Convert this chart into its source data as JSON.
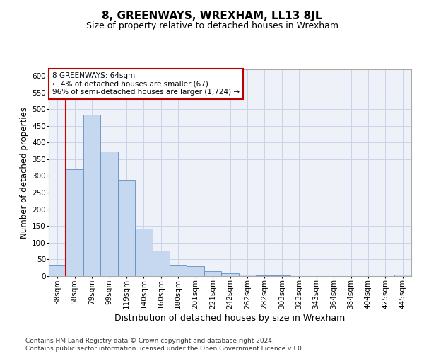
{
  "title": "8, GREENWAYS, WREXHAM, LL13 8JL",
  "subtitle": "Size of property relative to detached houses in Wrexham",
  "xlabel": "Distribution of detached houses by size in Wrexham",
  "ylabel": "Number of detached properties",
  "categories": [
    "38sqm",
    "58sqm",
    "79sqm",
    "99sqm",
    "119sqm",
    "140sqm",
    "160sqm",
    "180sqm",
    "201sqm",
    "221sqm",
    "242sqm",
    "262sqm",
    "282sqm",
    "303sqm",
    "323sqm",
    "343sqm",
    "364sqm",
    "384sqm",
    "404sqm",
    "425sqm",
    "445sqm"
  ],
  "values": [
    31,
    320,
    483,
    373,
    288,
    143,
    76,
    32,
    29,
    14,
    8,
    5,
    3,
    2,
    1,
    1,
    0,
    0,
    0,
    0,
    5
  ],
  "bar_color": "#c5d8f0",
  "bar_edge_color": "#6090c0",
  "property_line_color": "#cc0000",
  "property_line_x": 1.5,
  "annotation_line1": "8 GREENWAYS: 64sqm",
  "annotation_line2": "← 4% of detached houses are smaller (67)",
  "annotation_line3": "96% of semi-detached houses are larger (1,724) →",
  "ylim_max": 620,
  "yticks": [
    0,
    50,
    100,
    150,
    200,
    250,
    300,
    350,
    400,
    450,
    500,
    550,
    600
  ],
  "footer_line1": "Contains HM Land Registry data © Crown copyright and database right 2024.",
  "footer_line2": "Contains public sector information licensed under the Open Government Licence v3.0.",
  "grid_color": "#c8d4e8",
  "plot_bg": "#eef2f8",
  "annotation_box_color": "#bb0000"
}
